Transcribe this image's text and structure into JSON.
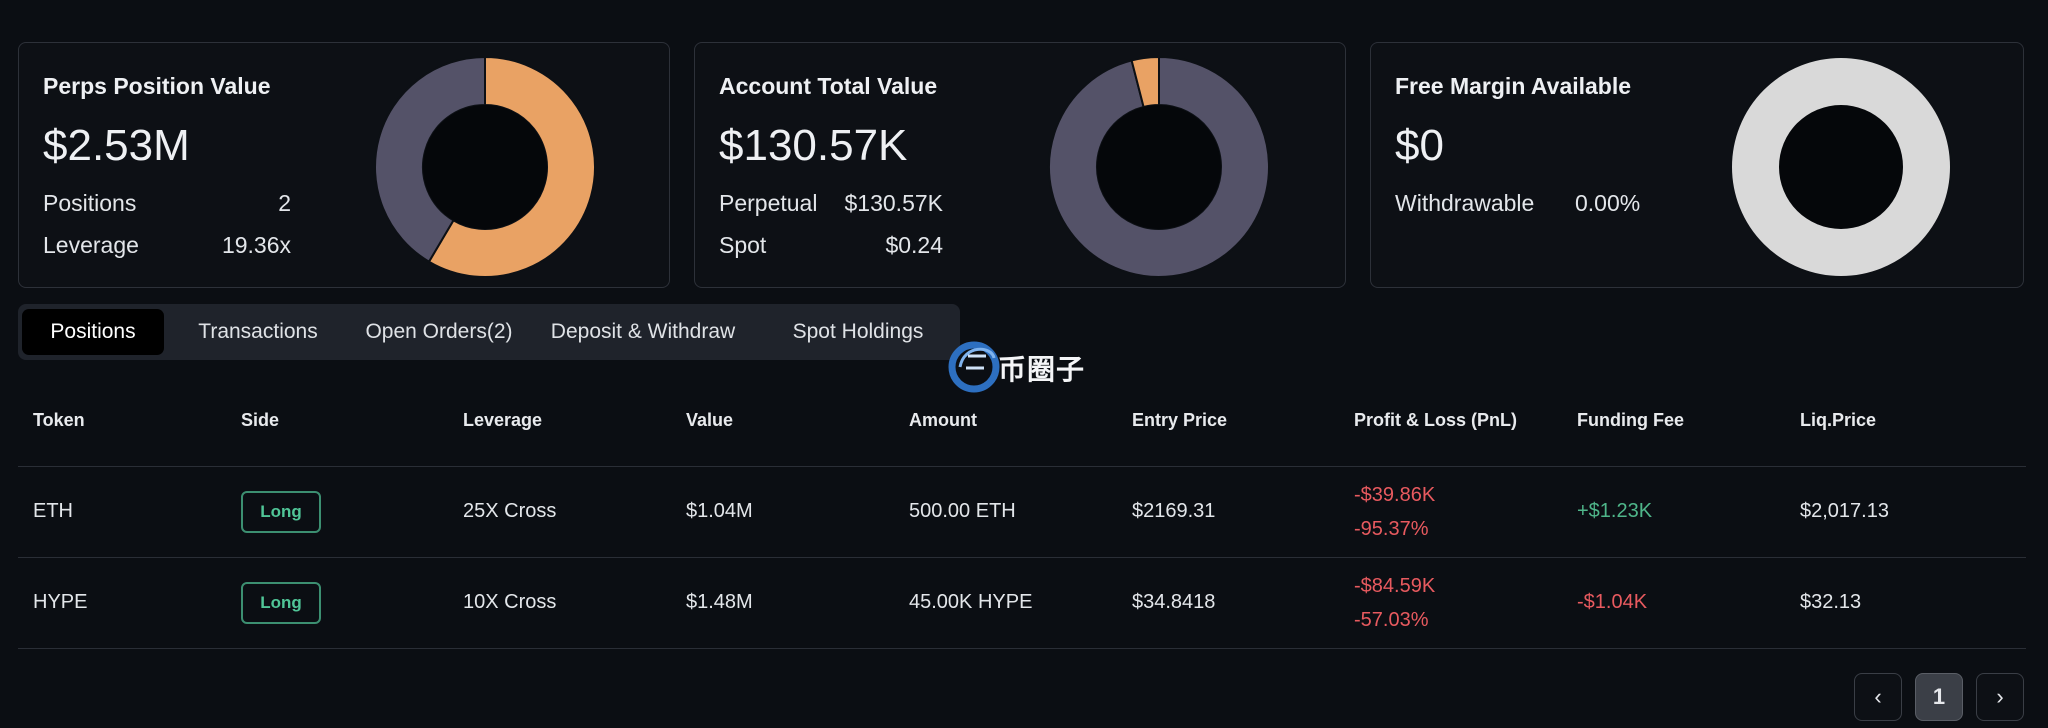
{
  "cards": [
    {
      "title": "Perps Position Value",
      "value": "$2.53M",
      "stats": [
        {
          "label": "Positions",
          "value": "2"
        },
        {
          "label": "Leverage",
          "value": "19.36x"
        }
      ],
      "donut": {
        "segments": [
          {
            "fraction": 0.585,
            "color": "#e9a264"
          },
          {
            "fraction": 0.415,
            "color": "#545268"
          }
        ]
      }
    },
    {
      "title": "Account Total Value",
      "value": "$130.57K",
      "stats": [
        {
          "label": "Perpetual",
          "value": "$130.57K"
        },
        {
          "label": "Spot",
          "value": "$0.24"
        }
      ],
      "donut": {
        "segments": [
          {
            "fraction": 0.96,
            "color": "#545268"
          },
          {
            "fraction": 0.04,
            "color": "#e9a264"
          }
        ]
      }
    },
    {
      "title": "Free Margin Available",
      "value": "$0",
      "stats": [
        {
          "label": "Withdrawable",
          "value": "0.00%"
        }
      ],
      "donut": {
        "segments": [
          {
            "fraction": 1.0,
            "color": "#d9d9d9"
          }
        ]
      }
    }
  ],
  "tabs": [
    "Positions",
    "Transactions",
    "Open Orders(2)",
    "Deposit & Withdraw",
    "Spot Holdings"
  ],
  "active_tab": "Positions",
  "watermark": "币圈子",
  "table": {
    "headers": [
      "Token",
      "Side",
      "Leverage",
      "Value",
      "Amount",
      "Entry Price",
      "Profit & Loss (PnL)",
      "Funding Fee",
      "Liq.Price"
    ],
    "rows": [
      {
        "token": "ETH",
        "side": "Long",
        "leverage": "25X Cross",
        "value": "$1.04M",
        "amount": "500.00 ETH",
        "entry": "$2169.31",
        "pnl": "-$39.86K",
        "pnl_pct": "-95.37%",
        "funding": "+$1.23K",
        "liq": "$2,017.13"
      },
      {
        "token": "HYPE",
        "side": "Long",
        "leverage": "10X Cross",
        "value": "$1.48M",
        "amount": "45.00K HYPE",
        "entry": "$34.8418",
        "pnl": "-$84.59K",
        "pnl_pct": "-57.03%",
        "funding": "-$1.04K",
        "liq": "$32.13"
      }
    ]
  },
  "pagination": {
    "prev": "‹",
    "current": "1",
    "next": "›"
  }
}
